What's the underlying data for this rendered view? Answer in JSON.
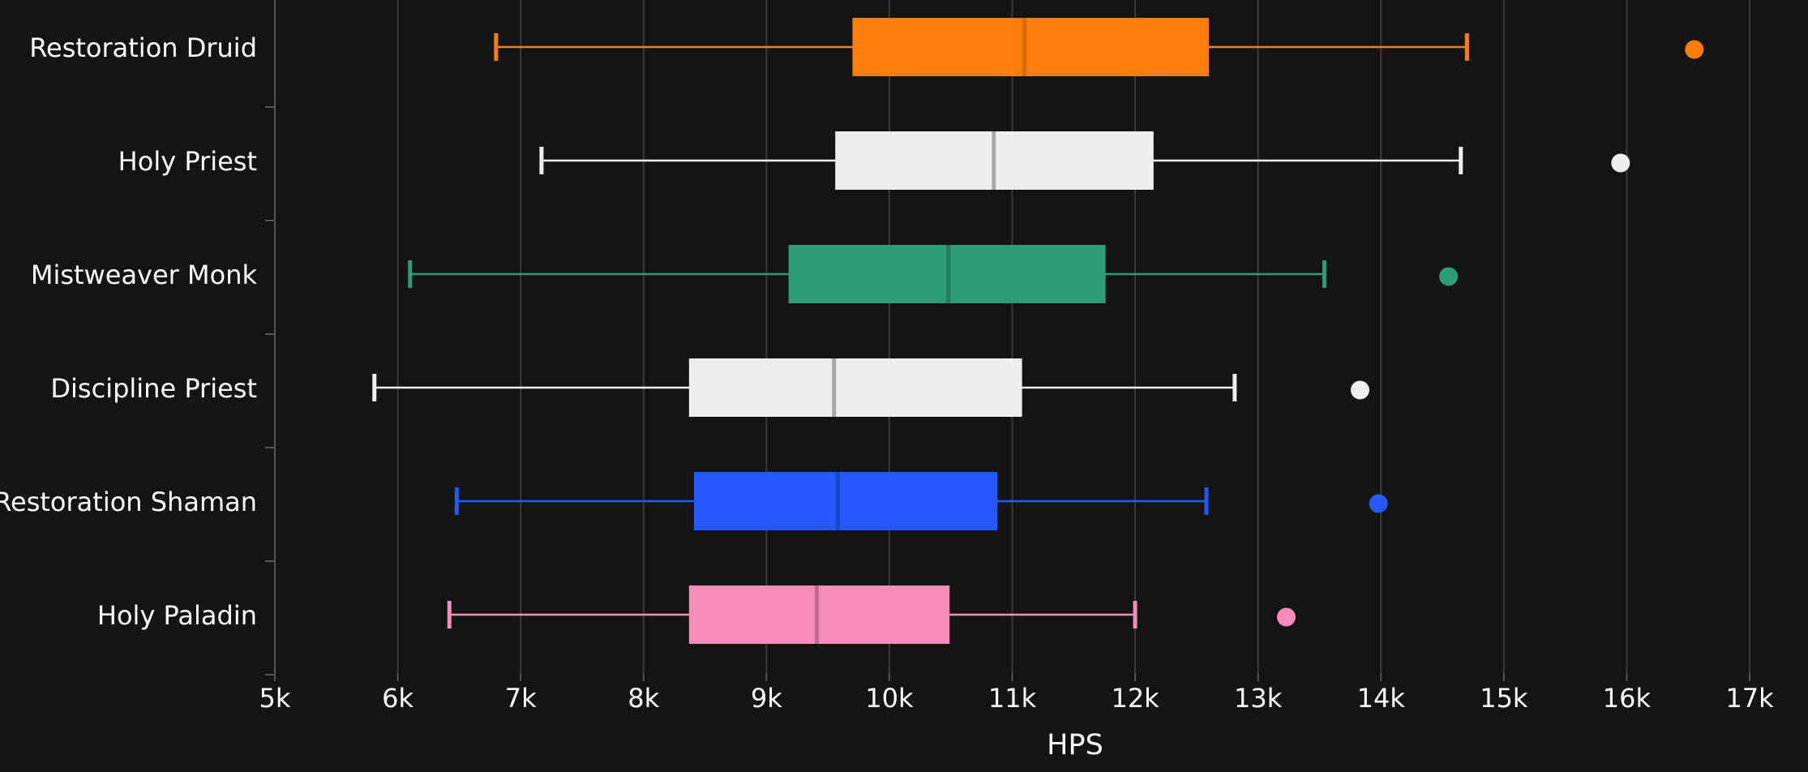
{
  "chart_data": {
    "type": "box",
    "xlabel": "HPS",
    "xlim": [
      5000,
      17000
    ],
    "x_ticks": [
      {
        "value": 5000,
        "label": "5k"
      },
      {
        "value": 6000,
        "label": "6k"
      },
      {
        "value": 7000,
        "label": "7k"
      },
      {
        "value": 8000,
        "label": "8k"
      },
      {
        "value": 9000,
        "label": "9k"
      },
      {
        "value": 10000,
        "label": "10k"
      },
      {
        "value": 11000,
        "label": "11k"
      },
      {
        "value": 12000,
        "label": "12k"
      },
      {
        "value": 13000,
        "label": "13k"
      },
      {
        "value": 14000,
        "label": "14k"
      },
      {
        "value": 15000,
        "label": "15k"
      },
      {
        "value": 16000,
        "label": "16k"
      },
      {
        "value": 17000,
        "label": "17k"
      }
    ],
    "grid": true,
    "categories": [
      {
        "name": "Restoration Druid",
        "color": "#ff7d0a",
        "median_color": "#d76a09",
        "min": 6800,
        "q1": 9700,
        "median": 11100,
        "q3": 12600,
        "max": 14700,
        "outlier": 16550
      },
      {
        "name": "Holy Priest",
        "color": "#eeeeee",
        "median_color": "#a8a8a8",
        "min": 7170,
        "q1": 9560,
        "median": 10850,
        "q3": 12150,
        "max": 14650,
        "outlier": 15950
      },
      {
        "name": "Mistweaver Monk",
        "color": "#2e9c78",
        "median_color": "#237a5d",
        "min": 6100,
        "q1": 9180,
        "median": 10480,
        "q3": 11760,
        "max": 13540,
        "outlier": 14550
      },
      {
        "name": "Discipline Priest",
        "color": "#eeeeee",
        "median_color": "#a8a8a8",
        "min": 5810,
        "q1": 8370,
        "median": 9550,
        "q3": 11080,
        "max": 12810,
        "outlier": 13830
      },
      {
        "name": "Restoration Shaman",
        "color": "#2459ff",
        "median_color": "#1b45c4",
        "min": 6480,
        "q1": 8410,
        "median": 9580,
        "q3": 10880,
        "max": 12580,
        "outlier": 13980
      },
      {
        "name": "Holy Paladin",
        "color": "#f58cba",
        "median_color": "#c2698f",
        "min": 6420,
        "q1": 8370,
        "median": 9410,
        "q3": 10490,
        "max": 12000,
        "outlier": 13230
      }
    ]
  }
}
